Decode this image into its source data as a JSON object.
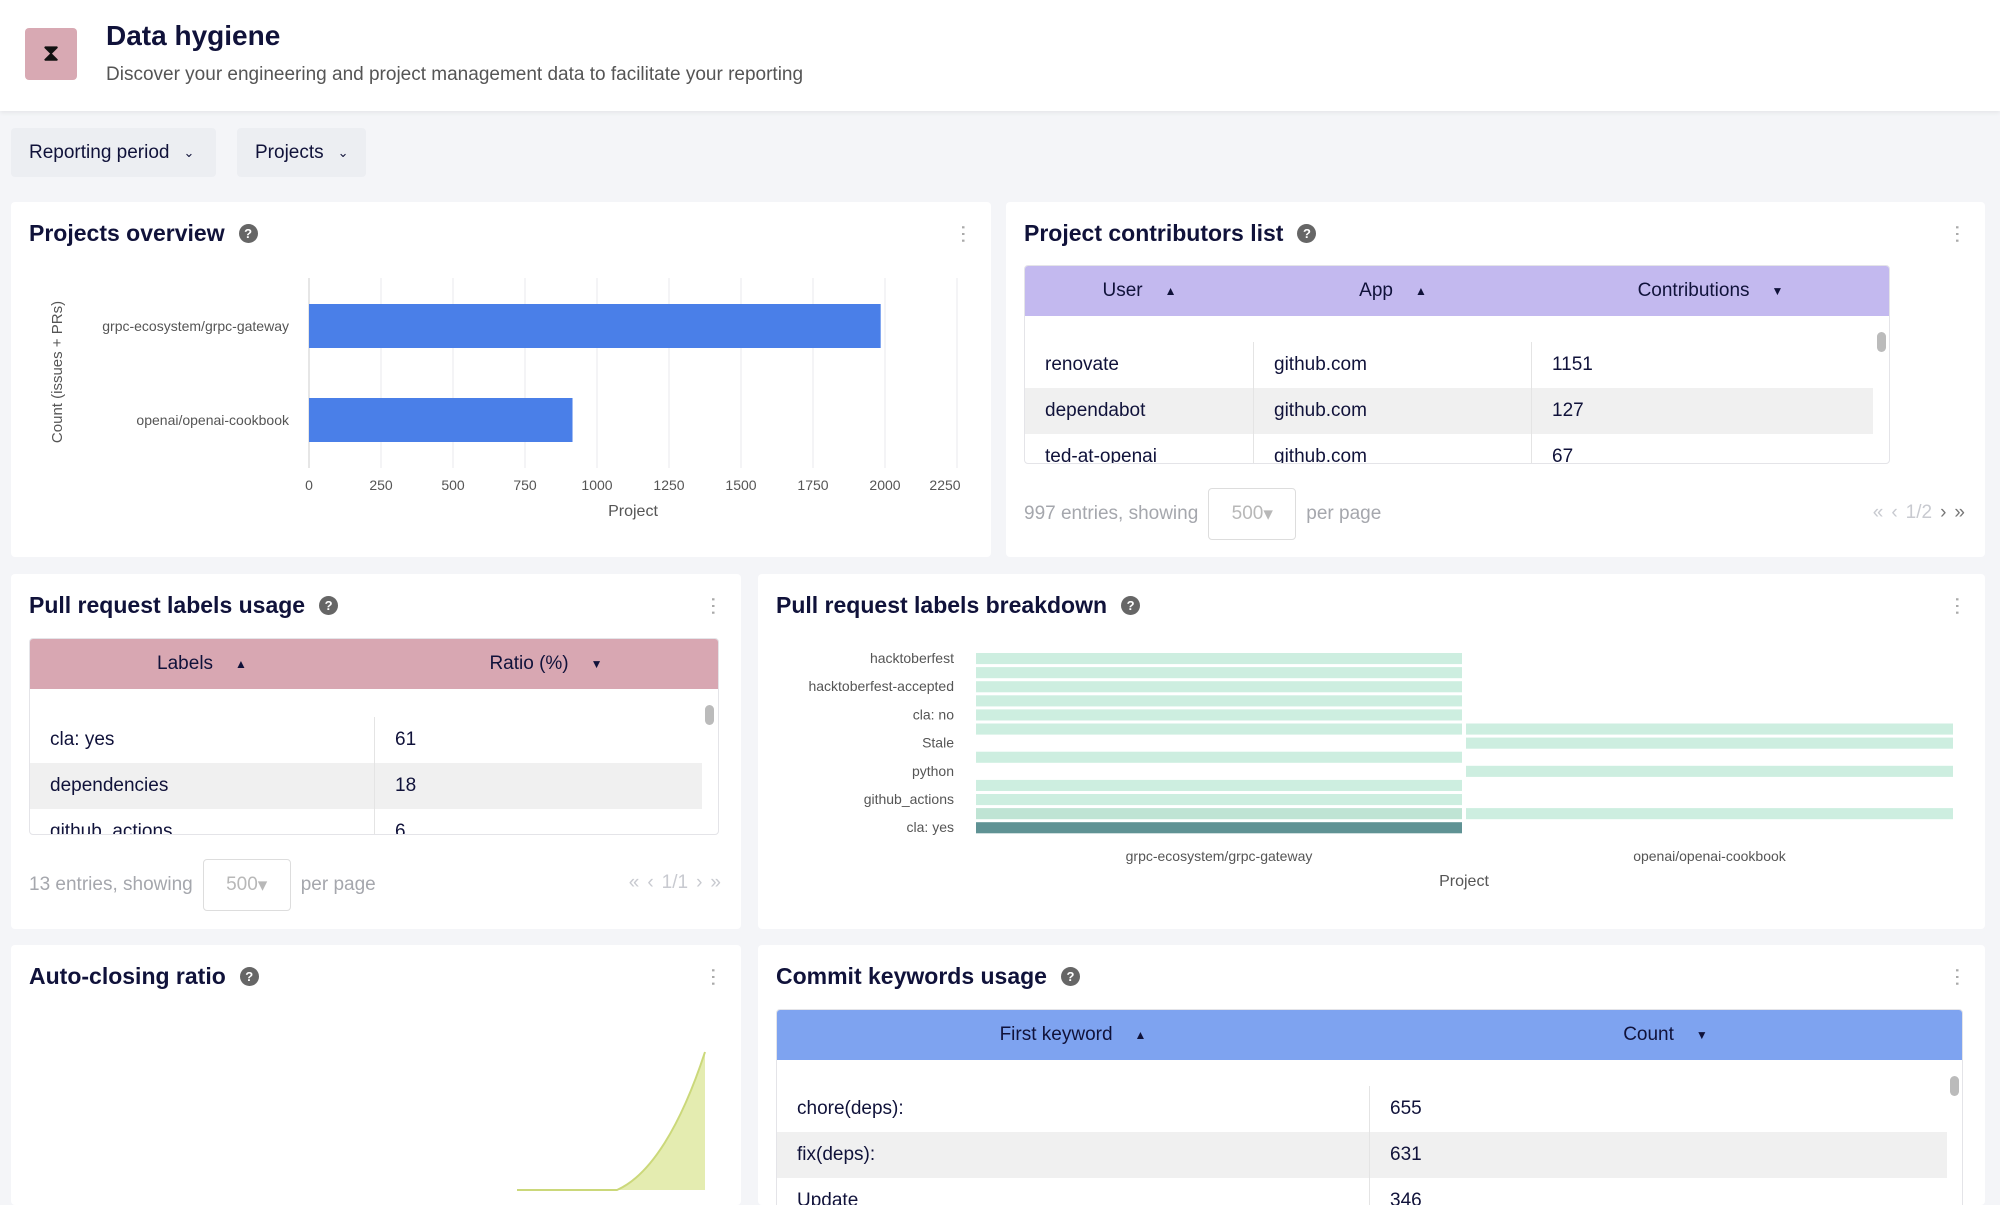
{
  "header": {
    "title": "Data hygiene",
    "subtitle": "Discover your engineering and project management data to facilitate your reporting",
    "icon": "hourglass-icon"
  },
  "filters": [
    {
      "label": "Reporting period"
    },
    {
      "label": "Projects"
    }
  ],
  "colors": {
    "bar": "#4a7fe8",
    "contributors_header": "#c3b9ef",
    "labels_header": "#d8a7b2",
    "commits_header": "#7ea3f0",
    "heat_light": "#cdeee0",
    "heat_dark": "#5f9294",
    "area": "#e4ecb0"
  },
  "projects_overview": {
    "title": "Projects overview"
  },
  "contributors": {
    "title": "Project contributors list",
    "columns": [
      "User",
      "App",
      "Contributions"
    ],
    "rows": [
      [
        "renovate",
        "github.com",
        "1151"
      ],
      [
        "dependabot",
        "github.com",
        "127"
      ],
      [
        "ted-at-openai",
        "github.com",
        "67"
      ]
    ],
    "entries": "997 entries, showing",
    "per_page_value": "500",
    "per_page_label": "per page",
    "page": "1/2"
  },
  "pr_labels": {
    "title": "Pull request labels usage",
    "columns": [
      "Labels",
      "Ratio (%)"
    ],
    "rows": [
      [
        "cla: yes",
        "61"
      ],
      [
        "dependencies",
        "18"
      ],
      [
        "github_actions",
        "6"
      ]
    ],
    "entries": "13 entries, showing",
    "per_page_value": "500",
    "per_page_label": "per page",
    "page": "1/1"
  },
  "breakdown": {
    "title": "Pull request labels breakdown"
  },
  "auto_closing": {
    "title": "Auto-closing ratio"
  },
  "commits": {
    "title": "Commit keywords usage",
    "columns": [
      "First keyword",
      "Count"
    ],
    "rows": [
      [
        "chore(deps):",
        "655"
      ],
      [
        "fix(deps):",
        "631"
      ],
      [
        "Update",
        "346"
      ]
    ]
  },
  "chart_data": [
    {
      "type": "bar",
      "orientation": "horizontal",
      "categories": [
        "grpc-ecosystem/grpc-gateway",
        "openai/openai-cookbook"
      ],
      "values": [
        1985,
        915
      ],
      "xlabel": "Project",
      "ylabel": "Count (issues + PRs)",
      "xlim": [
        0,
        2250
      ],
      "xticks": [
        0,
        250,
        500,
        750,
        1000,
        1250,
        1500,
        1750,
        2000,
        2250
      ],
      "grid": true
    },
    {
      "type": "heatmap",
      "x": [
        "grpc-ecosystem/grpc-gateway",
        "openai/openai-cookbook"
      ],
      "xlabel": "Project",
      "y": [
        "hacktoberfest",
        "",
        "hacktoberfest-accepted",
        "",
        "cla: no",
        "",
        "Stale",
        "",
        "python",
        "",
        "github_actions",
        "",
        "cla: yes"
      ],
      "values": [
        [
          1,
          0
        ],
        [
          1,
          0
        ],
        [
          1,
          0
        ],
        [
          1,
          0
        ],
        [
          1,
          0
        ],
        [
          1,
          1
        ],
        [
          0,
          1
        ],
        [
          1,
          0
        ],
        [
          0,
          1
        ],
        [
          1,
          0
        ],
        [
          1,
          0
        ],
        [
          1.5,
          1
        ],
        [
          5,
          0
        ]
      ]
    }
  ]
}
